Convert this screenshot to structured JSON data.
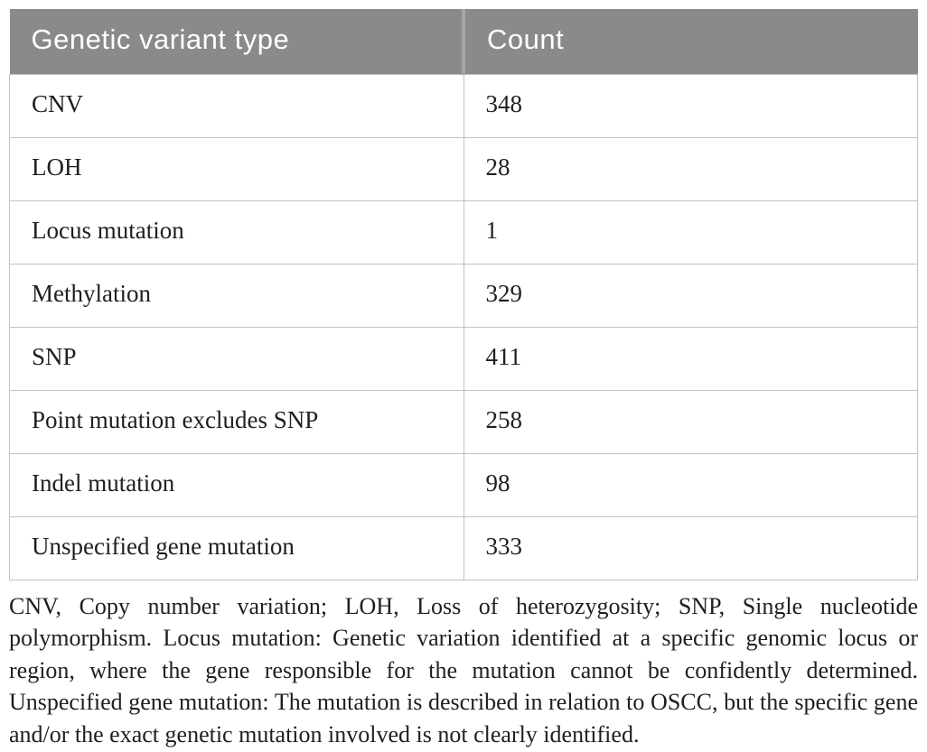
{
  "table": {
    "columns": [
      {
        "label": "Genetic variant type"
      },
      {
        "label": "Count"
      }
    ],
    "rows": [
      {
        "type": "CNV",
        "count": "348"
      },
      {
        "type": "LOH",
        "count": "28"
      },
      {
        "type": "Locus mutation",
        "count": "1"
      },
      {
        "type": "Methylation",
        "count": "329"
      },
      {
        "type": "SNP",
        "count": "411"
      },
      {
        "type": "Point mutation excludes SNP",
        "count": "258"
      },
      {
        "type": "Indel mutation",
        "count": "98"
      },
      {
        "type": "Unspecified gene mutation",
        "count": "333"
      }
    ]
  },
  "footnote": {
    "text": "CNV, Copy number variation; LOH, Loss of heterozygosity; SNP, Single nucleotide polymorphism. Locus mutation: Genetic variation identified at a specific genomic locus or region, where the gene responsible for the mutation cannot be confidently determined. Unspecified gene mutation: The mutation is described in relation to OSCC, but the specific gene and/or the exact genetic mutation involved is not clearly identified."
  },
  "colors": {
    "header_bg": "#8a8a8a",
    "header_text": "#ffffff",
    "header_divider": "#a6a6a6",
    "row_border": "#c2c2c2",
    "body_text": "#1f1f1f",
    "page_bg": "#ffffff"
  }
}
